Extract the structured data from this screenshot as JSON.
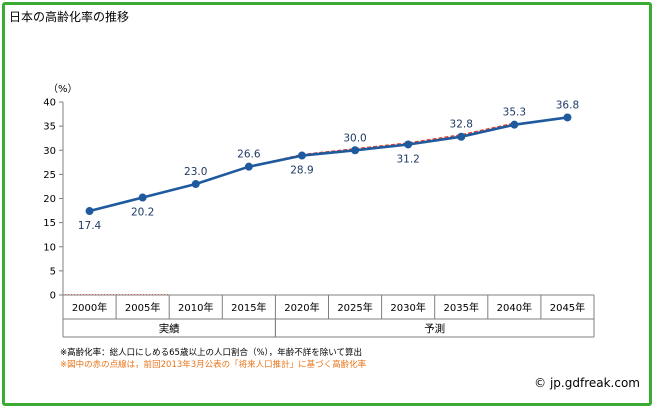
{
  "title": "日本の高齢化率の推移",
  "chart_data": {
    "type": "line",
    "ylabel": "（%）",
    "ylim": [
      0,
      40
    ],
    "yticks": [
      "0",
      "5",
      "10",
      "15",
      "20",
      "25",
      "30",
      "35",
      "40"
    ],
    "categories": [
      "2000年",
      "2005年",
      "2010年",
      "2015年",
      "2020年",
      "2025年",
      "2030年",
      "2035年",
      "2040年",
      "2045年"
    ],
    "groups": [
      {
        "label": "実績",
        "span": [
          0,
          3
        ]
      },
      {
        "label": "予測",
        "span": [
          4,
          9
        ]
      }
    ],
    "series": [
      {
        "values": [
          17.4,
          20.2,
          23.0,
          26.6,
          28.9,
          30.0,
          31.2,
          32.8,
          35.3,
          36.8
        ],
        "color": "#1f5a9e"
      },
      {
        "values": [
          null,
          null,
          null,
          26.6,
          29.1,
          30.3,
          31.5,
          33.2,
          35.6,
          null
        ],
        "color": "#e0402a",
        "style": "dashed"
      }
    ],
    "data_labels": [
      "17.4",
      "20.2",
      "23.0",
      "26.6",
      "28.9",
      "30.0",
      "31.2",
      "32.8",
      "35.3",
      "36.8"
    ],
    "label_positions": [
      "below",
      "below",
      "above",
      "above",
      "below",
      "above",
      "below",
      "above",
      "above",
      "above"
    ],
    "grid": false
  },
  "notes": {
    "line1": "※高齢化率：総人口にしめる65歳以上の人口割合（%），年齢不詳を除いて算出",
    "line2": "※図中の赤の点線は，前回2013年3月公表の「将来人口推計」に基づく高齢化率"
  },
  "credit": "© jp.gdfreak.com"
}
